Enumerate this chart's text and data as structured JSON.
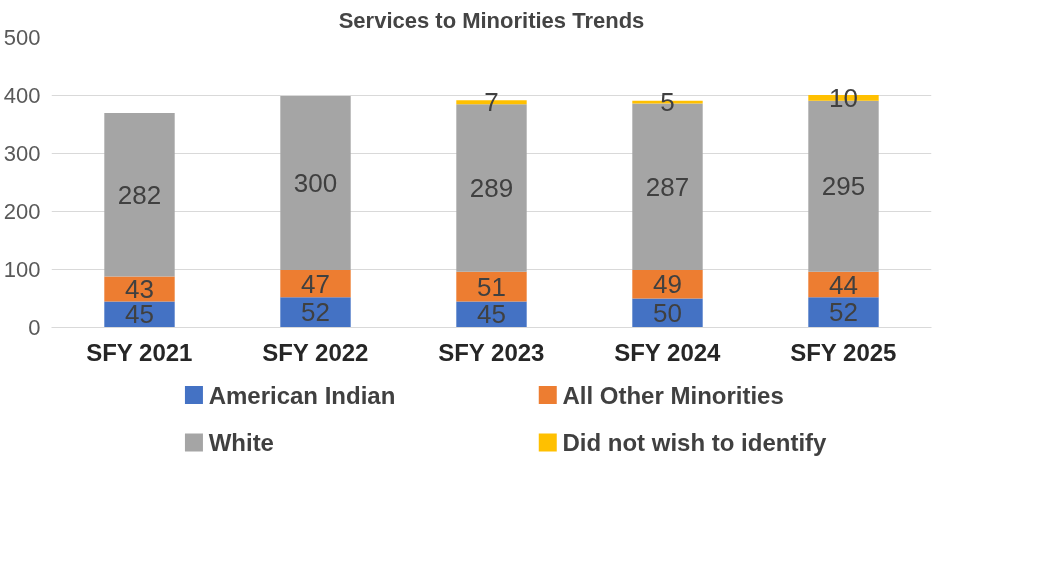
{
  "chart_data": {
    "type": "bar",
    "title": "Services to Minorities Trends",
    "categories": [
      "SFY 2021",
      "SFY 2022",
      "SFY 2023",
      "SFY 2024",
      "SFY 2025"
    ],
    "stacked": true,
    "series": [
      {
        "name": "American Indian",
        "color": "#4472c4",
        "values": [
          45,
          52,
          45,
          50,
          52
        ]
      },
      {
        "name": "All Other Minorities",
        "color": "#ed7d31",
        "values": [
          43,
          47,
          51,
          49,
          44
        ]
      },
      {
        "name": "White",
        "color": "#a5a5a5",
        "values": [
          282,
          300,
          289,
          287,
          295
        ]
      },
      {
        "name": "Did not wish to identify",
        "color": "#ffc000",
        "values": [
          null,
          null,
          7,
          5,
          10
        ]
      }
    ],
    "ylim": [
      0,
      500
    ],
    "yticks": [
      0,
      100,
      200,
      300,
      400,
      500
    ],
    "grid": "y",
    "legend": "bottom",
    "data_labels": true
  }
}
